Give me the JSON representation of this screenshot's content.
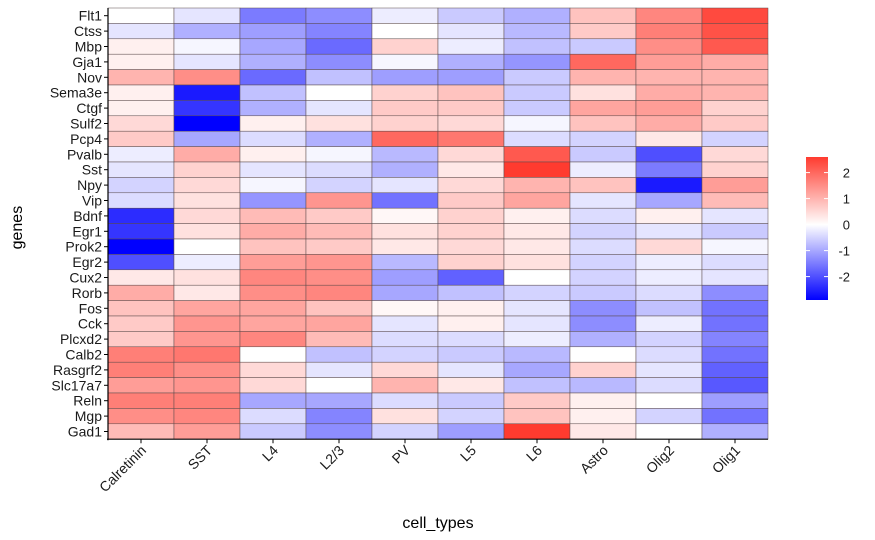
{
  "chart_data": {
    "type": "heatmap",
    "xlabel": "cell_types",
    "ylabel": "genes",
    "x_categories": [
      "Calretinin",
      "SST",
      "L4",
      "L2/3",
      "PV",
      "L5",
      "L6",
      "Astro",
      "Olig2",
      "Olig1"
    ],
    "y_categories": [
      "Flt1",
      "Ctss",
      "Mbp",
      "Gja1",
      "Nov",
      "Sema3e",
      "Ctgf",
      "Sulf2",
      "Pcp4",
      "Pvalb",
      "Sst",
      "Npy",
      "Vip",
      "Bdnf",
      "Egr1",
      "Prok2",
      "Egr2",
      "Cux2",
      "Rorb",
      "Fos",
      "Cck",
      "Plcxd2",
      "Calb2",
      "Rasgrf2",
      "Slc17a7",
      "Reln",
      "Mgp",
      "Gad1"
    ],
    "values": [
      [
        0.0,
        -0.3,
        -1.5,
        -1.3,
        -0.2,
        -0.6,
        -0.9,
        0.8,
        1.6,
        2.4
      ],
      [
        -0.3,
        -0.9,
        -1.1,
        -1.4,
        0.0,
        -0.3,
        -0.8,
        0.7,
        1.7,
        2.3
      ],
      [
        0.2,
        -0.1,
        -1.0,
        -1.7,
        0.6,
        -0.2,
        -0.7,
        -0.6,
        1.5,
        2.2
      ],
      [
        0.2,
        -0.3,
        -0.9,
        -1.3,
        -0.1,
        -0.9,
        -1.2,
        2.0,
        1.3,
        1.1
      ],
      [
        1.0,
        1.5,
        -1.7,
        -0.7,
        -1.1,
        -1.1,
        -0.6,
        1.0,
        1.0,
        1.0
      ],
      [
        0.2,
        -2.6,
        -0.7,
        0.0,
        0.6,
        0.8,
        -0.6,
        0.4,
        1.1,
        1.0
      ],
      [
        0.2,
        -2.3,
        -0.9,
        -0.3,
        0.7,
        0.7,
        -0.6,
        1.2,
        1.3,
        0.6
      ],
      [
        0.5,
        -2.9,
        0.2,
        0.4,
        0.6,
        0.5,
        -0.1,
        0.8,
        1.1,
        0.7
      ],
      [
        0.7,
        -1.0,
        -0.4,
        -0.9,
        2.0,
        1.8,
        -0.4,
        -0.5,
        0.3,
        -0.5
      ],
      [
        -0.2,
        1.1,
        0.2,
        -0.1,
        -0.8,
        0.5,
        2.2,
        -0.6,
        -2.0,
        0.5
      ],
      [
        -0.3,
        0.6,
        -0.3,
        -0.4,
        -0.9,
        0.3,
        2.6,
        -0.2,
        -1.5,
        0.6
      ],
      [
        -0.5,
        0.5,
        -0.1,
        -0.5,
        -0.3,
        0.5,
        1.0,
        0.8,
        -2.6,
        1.3
      ],
      [
        -0.4,
        0.4,
        -1.2,
        1.4,
        -1.6,
        0.7,
        1.2,
        -0.3,
        -1.0,
        0.9
      ],
      [
        -2.4,
        0.5,
        0.9,
        0.7,
        0.1,
        0.6,
        0.2,
        -0.4,
        0.2,
        -0.3
      ],
      [
        -2.3,
        0.4,
        1.1,
        0.9,
        0.4,
        0.6,
        0.3,
        -0.5,
        -0.3,
        -0.6
      ],
      [
        -2.9,
        0.0,
        0.8,
        0.7,
        0.3,
        0.5,
        0.3,
        -0.4,
        0.5,
        -0.1
      ],
      [
        -2.0,
        -0.2,
        1.3,
        1.4,
        -0.8,
        0.6,
        0.4,
        -0.5,
        -0.2,
        -0.4
      ],
      [
        0.3,
        0.4,
        1.6,
        1.5,
        -1.1,
        -1.8,
        0.0,
        -0.5,
        -0.2,
        -0.3
      ],
      [
        1.1,
        0.3,
        1.5,
        1.6,
        -1.0,
        -0.7,
        -0.5,
        -0.6,
        -0.4,
        -1.3
      ],
      [
        0.8,
        1.2,
        1.2,
        0.8,
        0.1,
        0.2,
        -0.3,
        -1.3,
        -0.7,
        -1.6
      ],
      [
        0.7,
        1.4,
        1.2,
        1.2,
        -0.3,
        0.2,
        -0.3,
        -1.3,
        -0.2,
        -1.6
      ],
      [
        0.7,
        1.4,
        1.6,
        0.9,
        -0.4,
        -0.4,
        -0.2,
        -0.9,
        -0.5,
        -1.4
      ],
      [
        1.7,
        1.8,
        0.0,
        -0.7,
        -0.5,
        -0.6,
        -0.8,
        0.0,
        -0.4,
        -1.6
      ],
      [
        1.7,
        1.5,
        0.5,
        -0.3,
        0.5,
        -0.3,
        -1.0,
        0.6,
        -0.3,
        -1.8
      ],
      [
        1.3,
        1.4,
        0.5,
        0.0,
        1.0,
        0.3,
        -0.7,
        -0.8,
        -0.4,
        -1.9
      ],
      [
        1.7,
        1.7,
        -1.0,
        -1.0,
        -0.4,
        -0.6,
        0.7,
        0.2,
        0.0,
        -1.1
      ],
      [
        1.5,
        1.6,
        -0.4,
        -1.4,
        0.4,
        -0.5,
        0.8,
        0.2,
        -0.5,
        -1.6
      ],
      [
        0.9,
        1.3,
        -0.6,
        -1.3,
        -0.5,
        -1.1,
        2.6,
        0.3,
        0.0,
        -0.9
      ]
    ],
    "legend": {
      "ticks": [
        2,
        1,
        0,
        -1,
        -2
      ],
      "range": [
        -2.9,
        2.6
      ],
      "placement": "right"
    },
    "color_scale": {
      "low": "#0000ff",
      "mid": "#ffffff",
      "high": "#ff3b2f"
    },
    "grid": false
  }
}
